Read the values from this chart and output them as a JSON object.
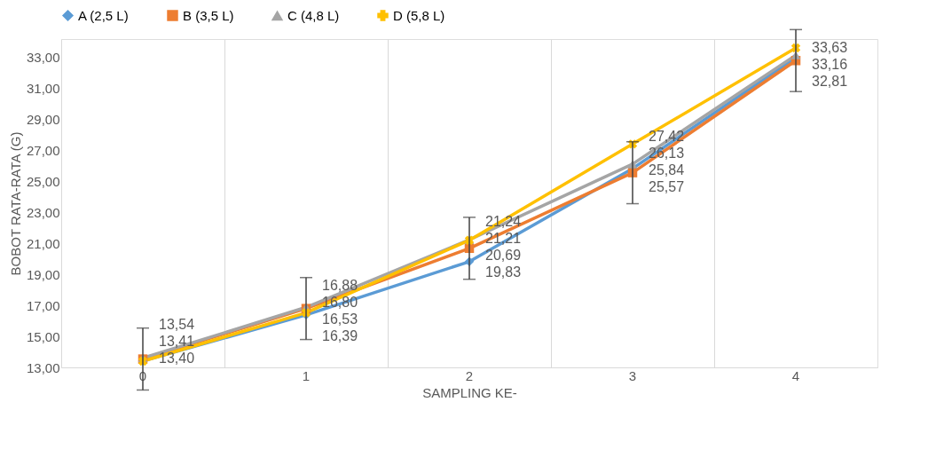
{
  "chart_data": {
    "type": "line",
    "xlabel": "SAMPLING KE-",
    "ylabel": "BOBOT RATA-RATA (G)",
    "categories": [
      "0",
      "1",
      "2",
      "3",
      "4"
    ],
    "series": [
      {
        "name": "A (2,5 L)",
        "color": "#5b9bd5",
        "marker": "diamond",
        "values": [
          13.41,
          16.39,
          19.83,
          25.84,
          33.0
        ],
        "value_labels": [
          "13,41",
          "16,39",
          "19,83",
          "25,84",
          null
        ]
      },
      {
        "name": "B (3,5 L)",
        "color": "#ed7d31",
        "marker": "square",
        "values": [
          13.54,
          16.8,
          20.69,
          25.57,
          32.81
        ],
        "value_labels": [
          "13,54",
          "16,80",
          "20,69",
          "25,57",
          "32,81"
        ],
        "errors": [
          2,
          2,
          2,
          2,
          2
        ]
      },
      {
        "name": "C (4,8 L)",
        "color": "#a5a5a5",
        "marker": "triangle",
        "values": [
          13.6,
          16.88,
          21.24,
          26.13,
          33.16
        ],
        "value_labels": [
          null,
          "16,88",
          "21,24",
          "26,13",
          "33,16"
        ]
      },
      {
        "name": "D (5,8 L)",
        "color": "#ffc000",
        "marker": "cross",
        "values": [
          13.4,
          16.53,
          21.21,
          27.42,
          33.63
        ],
        "value_labels": [
          "13,40",
          "16,53",
          "21,21",
          "27,42",
          "33,63"
        ]
      }
    ],
    "ylim": [
      13,
      34.2
    ],
    "yticks": [
      {
        "value": 13,
        "label": "13,00"
      },
      {
        "value": 15,
        "label": "15,00"
      },
      {
        "value": 17,
        "label": "17,00"
      },
      {
        "value": 19,
        "label": "19,00"
      },
      {
        "value": 21,
        "label": "21,00"
      },
      {
        "value": 23,
        "label": "23,00"
      },
      {
        "value": 25,
        "label": "25,00"
      },
      {
        "value": 27,
        "label": "27,00"
      },
      {
        "value": 29,
        "label": "29,00"
      },
      {
        "value": 31,
        "label": "31,00"
      },
      {
        "value": 33,
        "label": "33,00"
      }
    ],
    "grid": "x",
    "legend": "top",
    "line_style": "solid"
  }
}
